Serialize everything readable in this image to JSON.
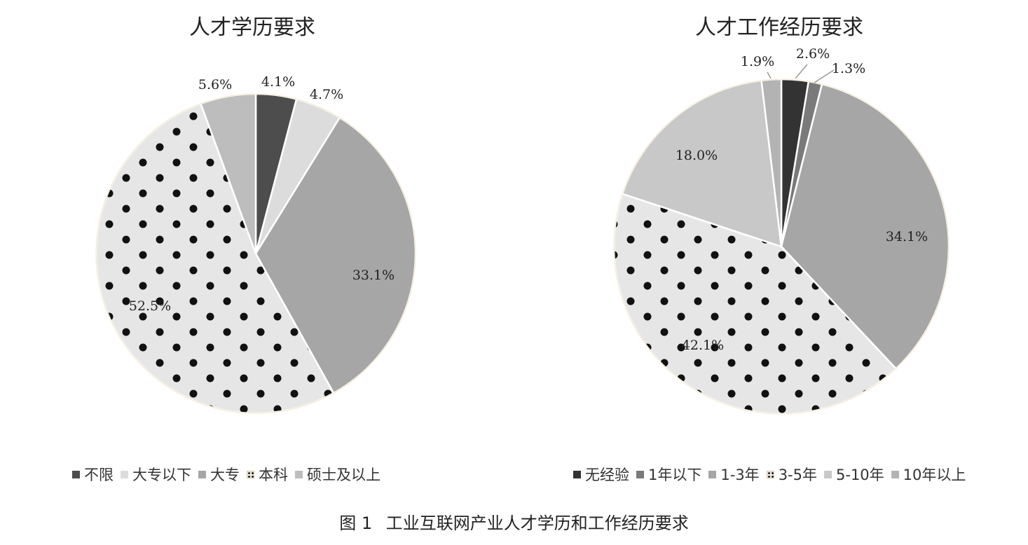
{
  "chart_data": [
    {
      "type": "pie",
      "title": "人才学历要求",
      "categories": [
        "不限",
        "大专以下",
        "大专",
        "本科",
        "硕士及以上"
      ],
      "values": [
        4.1,
        4.7,
        33.1,
        52.5,
        5.6
      ],
      "labels": [
        "4.1%",
        "4.7%",
        "33.1%",
        "52.5%",
        "5.6%"
      ],
      "colors": [
        "#4d4d4d",
        "#dcdcdc",
        "#a6a6a6",
        "#e6e6e6",
        "#bdbdbd"
      ],
      "legend_order": [
        0,
        1,
        2,
        3,
        4
      ],
      "legend_position": "bottom"
    },
    {
      "type": "pie",
      "title": "人才工作经历要求",
      "categories": [
        "无经验",
        "1年以下",
        "1-3年",
        "3-5年",
        "5-10年",
        "10年以上"
      ],
      "values": [
        2.6,
        1.3,
        34.1,
        42.1,
        18.0,
        1.9
      ],
      "labels": [
        "2.6%",
        "1.3%",
        "34.1%",
        "42.1%",
        "18.0%",
        "1.9%"
      ],
      "colors": [
        "#333333",
        "#7a7a7a",
        "#a6a6a6",
        "#e6e6e6",
        "#c8c8c8",
        "#b3b3b3"
      ],
      "legend_order": [
        0,
        1,
        2,
        3,
        4,
        5
      ],
      "legend_position": "bottom"
    }
  ],
  "figure": {
    "number": "图 1",
    "caption": "工业互联网产业人才学历和工作经历要求"
  }
}
